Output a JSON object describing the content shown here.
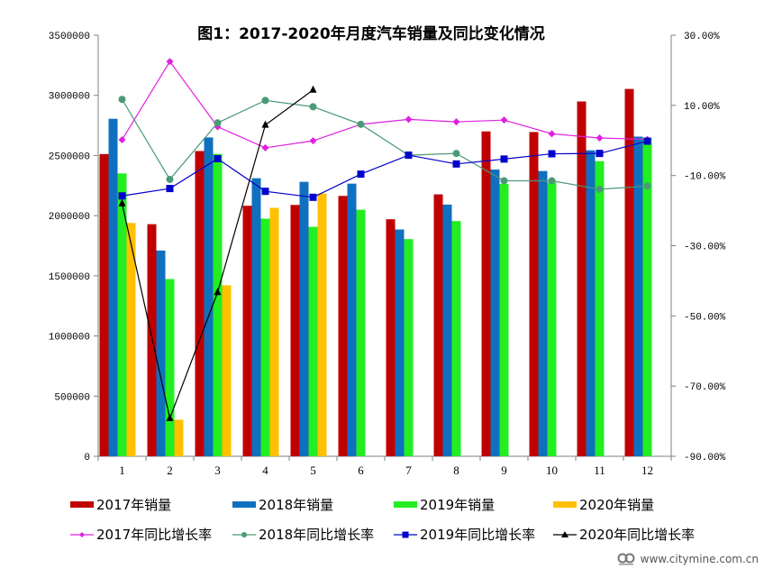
{
  "chart_data": {
    "type": "bar",
    "title": "图1：2017-2020年月度汽车销量及同比变化情况",
    "xlabel": "",
    "ylabel": "",
    "y2label": "",
    "categories": [
      "1",
      "2",
      "3",
      "4",
      "5",
      "6",
      "7",
      "8",
      "9",
      "10",
      "11",
      "12"
    ],
    "ylim": [
      0,
      3500000
    ],
    "yticks": [
      "0",
      "500000",
      "1000000",
      "1500000",
      "2000000",
      "2500000",
      "3000000",
      "3500000"
    ],
    "ytick_values": [
      0,
      500000,
      1000000,
      1500000,
      2000000,
      2500000,
      3000000,
      3500000
    ],
    "y2lim": [
      -90,
      30
    ],
    "y2ticks": [
      "-90.00%",
      "-70.00%",
      "-50.00%",
      "-30.00%",
      "-10.00%",
      "10.00%",
      "30.00%"
    ],
    "y2tick_values": [
      -90,
      -70,
      -50,
      -30,
      -10,
      10,
      30
    ],
    "grid": false,
    "legend_position": "bottom",
    "series": [
      {
        "name": "2017年销量",
        "kind": "bar",
        "axis": "left",
        "color": "#C00000",
        "values": [
          2512000,
          1929000,
          2537000,
          2082000,
          2089000,
          2164000,
          1970000,
          2177000,
          2700000,
          2695000,
          2949000,
          3053000
        ]
      },
      {
        "name": "2018年销量",
        "kind": "bar",
        "axis": "left",
        "color": "#1070C0",
        "values": [
          2805000,
          1710000,
          2650000,
          2311000,
          2281000,
          2266000,
          1885000,
          2092000,
          2383000,
          2371000,
          2543000,
          2657000
        ]
      },
      {
        "name": "2019年销量",
        "kind": "bar",
        "axis": "left",
        "color": "#22EE22",
        "values": [
          2351000,
          1473000,
          2513000,
          1975000,
          1907000,
          2049000,
          1805000,
          1955000,
          2264000,
          2276000,
          2453000,
          2647000
        ]
      },
      {
        "name": "2020年销量",
        "kind": "bar",
        "axis": "left",
        "color": "#FFC000",
        "values": [
          1939000,
          304000,
          1421000,
          2065000,
          2184000,
          null,
          null,
          null,
          null,
          null,
          null,
          null
        ]
      },
      {
        "name": "2017年同比增长率",
        "kind": "line",
        "axis": "right",
        "color": "#E020E0",
        "marker": "diamond",
        "values": [
          0.2,
          22.5,
          3.9,
          -2.1,
          -0.1,
          4.6,
          6.0,
          5.3,
          5.8,
          1.9,
          0.7,
          0.3
        ]
      },
      {
        "name": "2018年同比增长率",
        "kind": "line",
        "axis": "right",
        "color": "#4A9A78",
        "marker": "circle",
        "values": [
          11.7,
          -11.1,
          5.0,
          11.4,
          9.6,
          4.6,
          -4.2,
          -3.7,
          -11.5,
          -11.5,
          -13.9,
          -13.0
        ]
      },
      {
        "name": "2019年同比增长率",
        "kind": "line",
        "axis": "right",
        "color": "#0000CC",
        "marker": "square",
        "values": [
          -15.8,
          -13.7,
          -5.2,
          -14.5,
          -16.2,
          -9.6,
          -4.2,
          -6.7,
          -5.3,
          -3.8,
          -3.7,
          -0.2
        ]
      },
      {
        "name": "2020年同比增长率",
        "kind": "line",
        "axis": "right",
        "color": "#000000",
        "marker": "triangle",
        "values": [
          -18.0,
          -79.2,
          -43.3,
          4.4,
          14.4,
          null,
          null,
          null,
          null,
          null,
          null,
          null
        ]
      }
    ]
  },
  "watermark": {
    "text": "www.citymine.com.cn",
    "logo": "citymine-logo-icon"
  }
}
